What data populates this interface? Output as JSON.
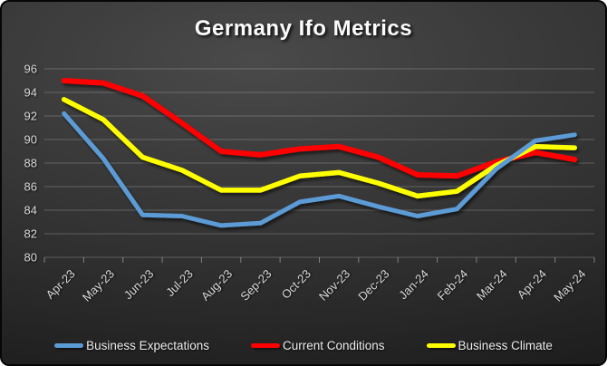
{
  "window": {
    "title": "Germany Ifo Metrics"
  },
  "chart_data": {
    "type": "line",
    "title": "Germany Ifo Metrics",
    "xlabel": "",
    "ylabel": "",
    "categories": [
      "Apr-23",
      "May-23",
      "Jun-23",
      "Jul-23",
      "Aug-23",
      "Sep-23",
      "Oct-23",
      "Nov-23",
      "Dec-23",
      "Jan-24",
      "Feb-24",
      "Mar-24",
      "Apr-24",
      "May-24"
    ],
    "series": [
      {
        "name": "Business Expectations",
        "color": "#5B9BD5",
        "values": [
          92.2,
          88.4,
          83.6,
          83.5,
          82.7,
          82.9,
          84.7,
          85.2,
          84.3,
          83.5,
          84.1,
          87.5,
          89.9,
          90.4
        ]
      },
      {
        "name": "Current Conditions",
        "color": "#FF0000",
        "values": [
          95.0,
          94.8,
          93.7,
          91.4,
          89.0,
          88.7,
          89.2,
          89.4,
          88.5,
          87.0,
          86.9,
          88.1,
          88.9,
          88.3
        ]
      },
      {
        "name": "Business Climate",
        "color": "#FFFF00",
        "values": [
          93.4,
          91.7,
          88.5,
          87.4,
          85.7,
          85.7,
          86.9,
          87.2,
          86.3,
          85.2,
          85.6,
          87.8,
          89.4,
          89.3
        ]
      }
    ],
    "ylim": [
      80,
      96
    ],
    "ytick_step": 2,
    "ytick_labels": [
      "80",
      "82",
      "84",
      "86",
      "88",
      "90",
      "92",
      "94",
      "96"
    ],
    "grid": true,
    "legend_position": "bottom",
    "x_label_rotation_deg": -45,
    "background_theme": "dark-gradient",
    "draw_order": [
      1,
      2,
      0
    ]
  }
}
